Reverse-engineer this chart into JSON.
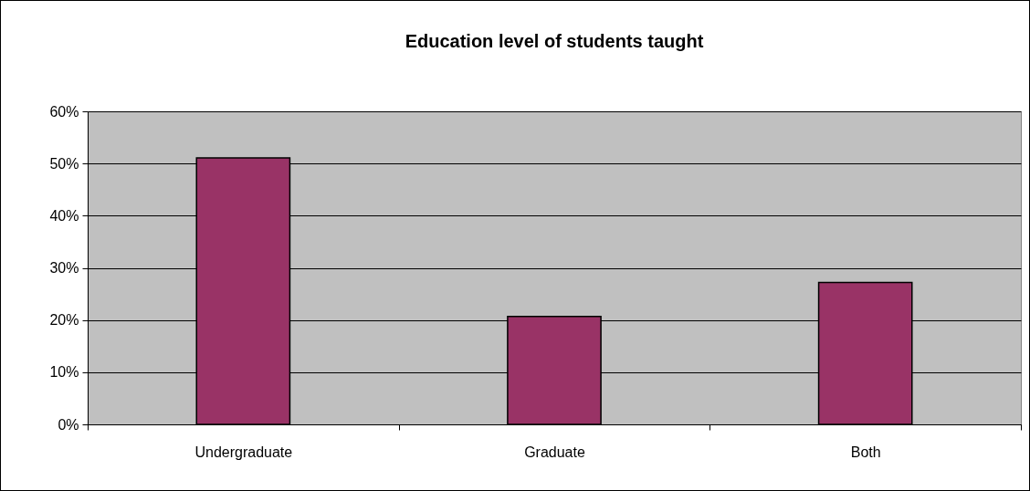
{
  "chart_data": {
    "type": "bar",
    "title": "Education level of students taught",
    "categories": [
      "Undergraduate",
      "Graduate",
      "Both"
    ],
    "values": [
      51.1,
      20.7,
      27.2
    ],
    "color": "#993366",
    "ylim": [
      0,
      60
    ],
    "yticks": [
      {
        "value": 0,
        "label": "0%"
      },
      {
        "value": 10,
        "label": "10%"
      },
      {
        "value": 20,
        "label": "20%"
      },
      {
        "value": 30,
        "label": "30%"
      },
      {
        "value": 40,
        "label": "40%"
      },
      {
        "value": 50,
        "label": "50%"
      },
      {
        "value": 60,
        "label": "60%"
      }
    ],
    "grid": "y"
  }
}
